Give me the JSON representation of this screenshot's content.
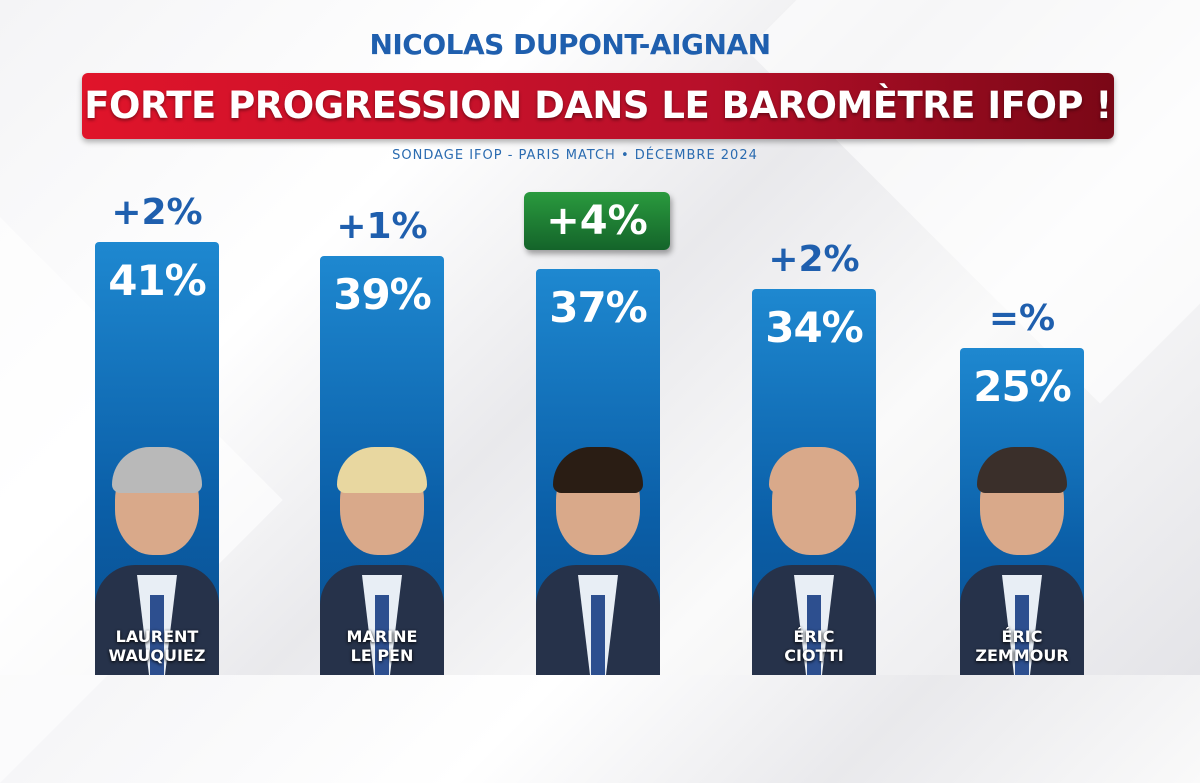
{
  "header": {
    "top_title": "NICOLAS DUPONT-AIGNAN",
    "banner": "FORTE PROGRESSION DANS LE BAROMÈTRE IFOP !",
    "subtitle": "SONDAGE IFOP - PARIS MATCH • DÉCEMBRE 2024"
  },
  "colors": {
    "bar": "#0b5fa8",
    "banner": "#c8102e",
    "highlight": "#1f7a34",
    "text_blue": "#1f5fae"
  },
  "chart_data": {
    "type": "bar",
    "categories": [
      "LAURENT WAUQUIEZ",
      "MARINE LE PEN",
      "NICOLAS DUPONT-AIGNAN",
      "ÉRIC CIOTTI",
      "ÉRIC ZEMMOUR"
    ],
    "name_lines": [
      [
        "LAURENT",
        "WAUQUIEZ"
      ],
      [
        "MARINE",
        "LE PEN"
      ],
      [
        "",
        ""
      ],
      [
        "ÉRIC",
        "CIOTTI"
      ],
      [
        "ÉRIC",
        "ZEMMOUR"
      ]
    ],
    "values": [
      41,
      39,
      37,
      34,
      25
    ],
    "value_labels": [
      "41%",
      "39%",
      "37%",
      "34%",
      "25%"
    ],
    "change_labels": [
      "+2%",
      "+1%",
      "+4%",
      "+2%",
      "=%"
    ],
    "highlighted_index": 2,
    "unit": "%"
  }
}
